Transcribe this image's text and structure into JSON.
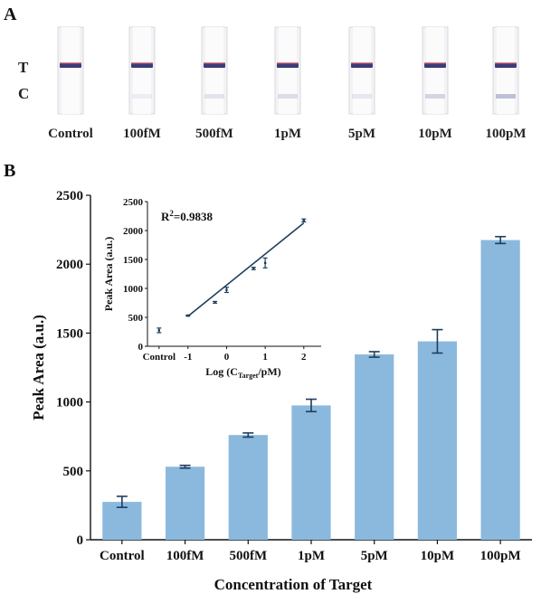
{
  "panel_a": {
    "label": "A",
    "t_label": "T",
    "c_label": "C",
    "strips": [
      "Control",
      "100fM",
      "500fM",
      "1pM",
      "5pM",
      "10pM",
      "100pM"
    ],
    "c_line_intensity": [
      0,
      0.12,
      0.22,
      0.28,
      0.18,
      0.35,
      0.55
    ]
  },
  "panel_b": {
    "label": "B"
  },
  "chart_data": [
    {
      "type": "bar",
      "title": "",
      "categories": [
        "Control",
        "100fM",
        "500fM",
        "1pM",
        "5pM",
        "10pM",
        "100pM"
      ],
      "values": [
        275,
        530,
        760,
        975,
        1345,
        1440,
        2175
      ],
      "errors": [
        40,
        10,
        15,
        45,
        20,
        85,
        25
      ],
      "xlabel": "Concentration of Target",
      "ylabel": "Peak Area (a.u.)",
      "ylim": [
        0,
        2500
      ],
      "yticks": [
        "0",
        "500",
        "1000",
        "1500",
        "2000",
        "2500"
      ],
      "bar_color": "#8bb9dd",
      "error_color": "#1d3d5c"
    },
    {
      "type": "scatter",
      "inset": true,
      "x_tick_labels": [
        "Control",
        "-1",
        "0",
        "1",
        "2"
      ],
      "xlabel_prefix": "Log (C",
      "xlabel_sub": "Target",
      "xlabel_suffix": "/pM)",
      "ylabel": "Peak Area (a.u.)",
      "ylim": [
        0,
        2500
      ],
      "yticks": [
        "0",
        "500",
        "1000",
        "1500",
        "2000",
        "2500"
      ],
      "xlim": [
        -2.05,
        2.45
      ],
      "points": [
        {
          "x": -1.75,
          "y": 275,
          "err": 40
        },
        {
          "x": -1.0,
          "y": 530,
          "err": 10
        },
        {
          "x": -0.301,
          "y": 760,
          "err": 15
        },
        {
          "x": 0.0,
          "y": 975,
          "err": 45
        },
        {
          "x": 0.699,
          "y": 1345,
          "err": 20
        },
        {
          "x": 1.0,
          "y": 1440,
          "err": 85
        },
        {
          "x": 2.0,
          "y": 2175,
          "err": 25
        }
      ],
      "fit_line": {
        "x": [
          -1.0,
          2.0
        ],
        "y": [
          520,
          2130
        ]
      },
      "r_squared_label": "R",
      "r_squared_sup": "2",
      "r_squared_value": "=0.9838",
      "line_color": "#1d3d5c"
    }
  ]
}
